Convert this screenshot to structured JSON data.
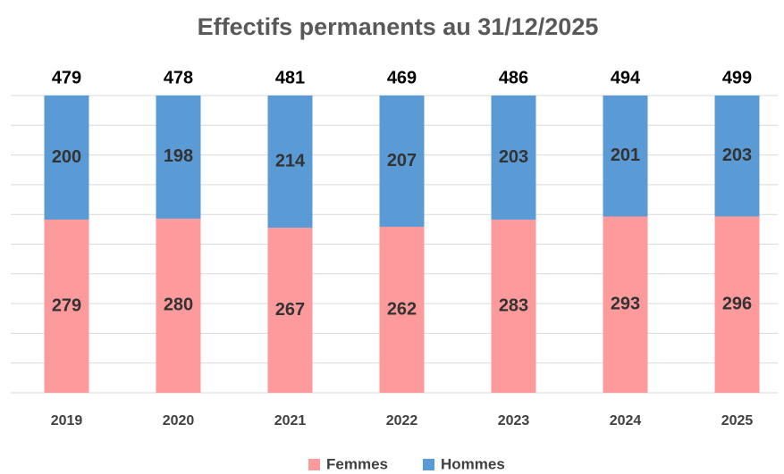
{
  "chart_data": {
    "type": "stacked_bar_100",
    "title": "Effectifs permanents au 31/12/2025",
    "categories": [
      "2019",
      "2020",
      "2021",
      "2022",
      "2023",
      "2024",
      "2025"
    ],
    "series": [
      {
        "name": "Femmes",
        "color": "#fd9a9c",
        "values": [
          279,
          280,
          267,
          262,
          283,
          293,
          296
        ]
      },
      {
        "name": "Hommes",
        "color": "#5b9bd5",
        "values": [
          200,
          198,
          214,
          207,
          203,
          201,
          203
        ]
      }
    ],
    "totals": [
      479,
      478,
      481,
      469,
      486,
      494,
      499
    ],
    "ylim": [
      0,
      100
    ],
    "yticks": [
      0,
      10,
      20,
      30,
      40,
      50,
      60,
      70,
      80,
      90,
      100
    ],
    "grid": true,
    "legend": "bottom"
  }
}
